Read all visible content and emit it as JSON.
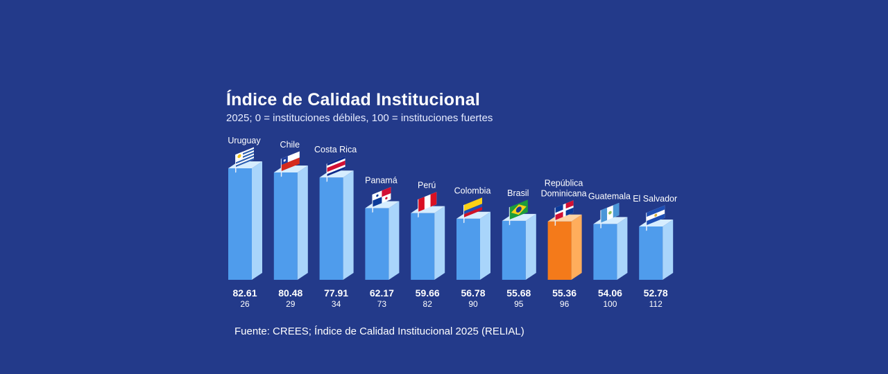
{
  "chart_data": {
    "type": "bar",
    "title": "Índice de Calidad Institucional",
    "subtitle": "2025; 0 = instituciones débiles, 100 = instituciones fuertes",
    "source": "Fuente: CREES; Índice de Calidad Institucional 2025 (RELIAL)",
    "xlabel": "",
    "ylabel": "",
    "ylim": [
      0,
      100
    ],
    "categories": [
      "Uruguay",
      "Chile",
      "Costa Rica",
      "Panamá",
      "Perú",
      "Colombia",
      "Brasil",
      "República Dominicana",
      "Guatemala",
      "El Salvador"
    ],
    "label_lines": [
      [
        "Uruguay"
      ],
      [
        "Chile"
      ],
      [
        "Costa Rica"
      ],
      [
        "Panamá"
      ],
      [
        "Perú"
      ],
      [
        "Colombia"
      ],
      [
        "Brasil"
      ],
      [
        "República",
        "Dominicana"
      ],
      [
        "Guatemala"
      ],
      [
        "El Salvador"
      ]
    ],
    "values": [
      "82.61",
      "80.48",
      "77.91",
      "62.17",
      "59.66",
      "56.78",
      "55.68",
      "55.36",
      "54.06",
      "52.78"
    ],
    "ranks": [
      "26",
      "29",
      "34",
      "73",
      "82",
      "90",
      "95",
      "96",
      "100",
      "112"
    ],
    "highlight": "República Dominicana",
    "flags": [
      "uruguay-flag-icon",
      "chile-flag-icon",
      "costa-rica-flag-icon",
      "panama-flag-icon",
      "peru-flag-icon",
      "colombia-flag-icon",
      "brasil-flag-icon",
      "republica-dominicana-flag-icon",
      "guatemala-flag-icon",
      "el-salvador-flag-icon"
    ],
    "colors": {
      "bar_front": "#4f9cec",
      "bar_side": "#a9d5fb",
      "bar_top": "#d6edff",
      "highlight_front": "#f47a1a",
      "highlight_side": "#ffad5c",
      "highlight_top": "#ffd3a3",
      "highlight_text": "#ff8a2a",
      "text": "#ffffff"
    }
  }
}
